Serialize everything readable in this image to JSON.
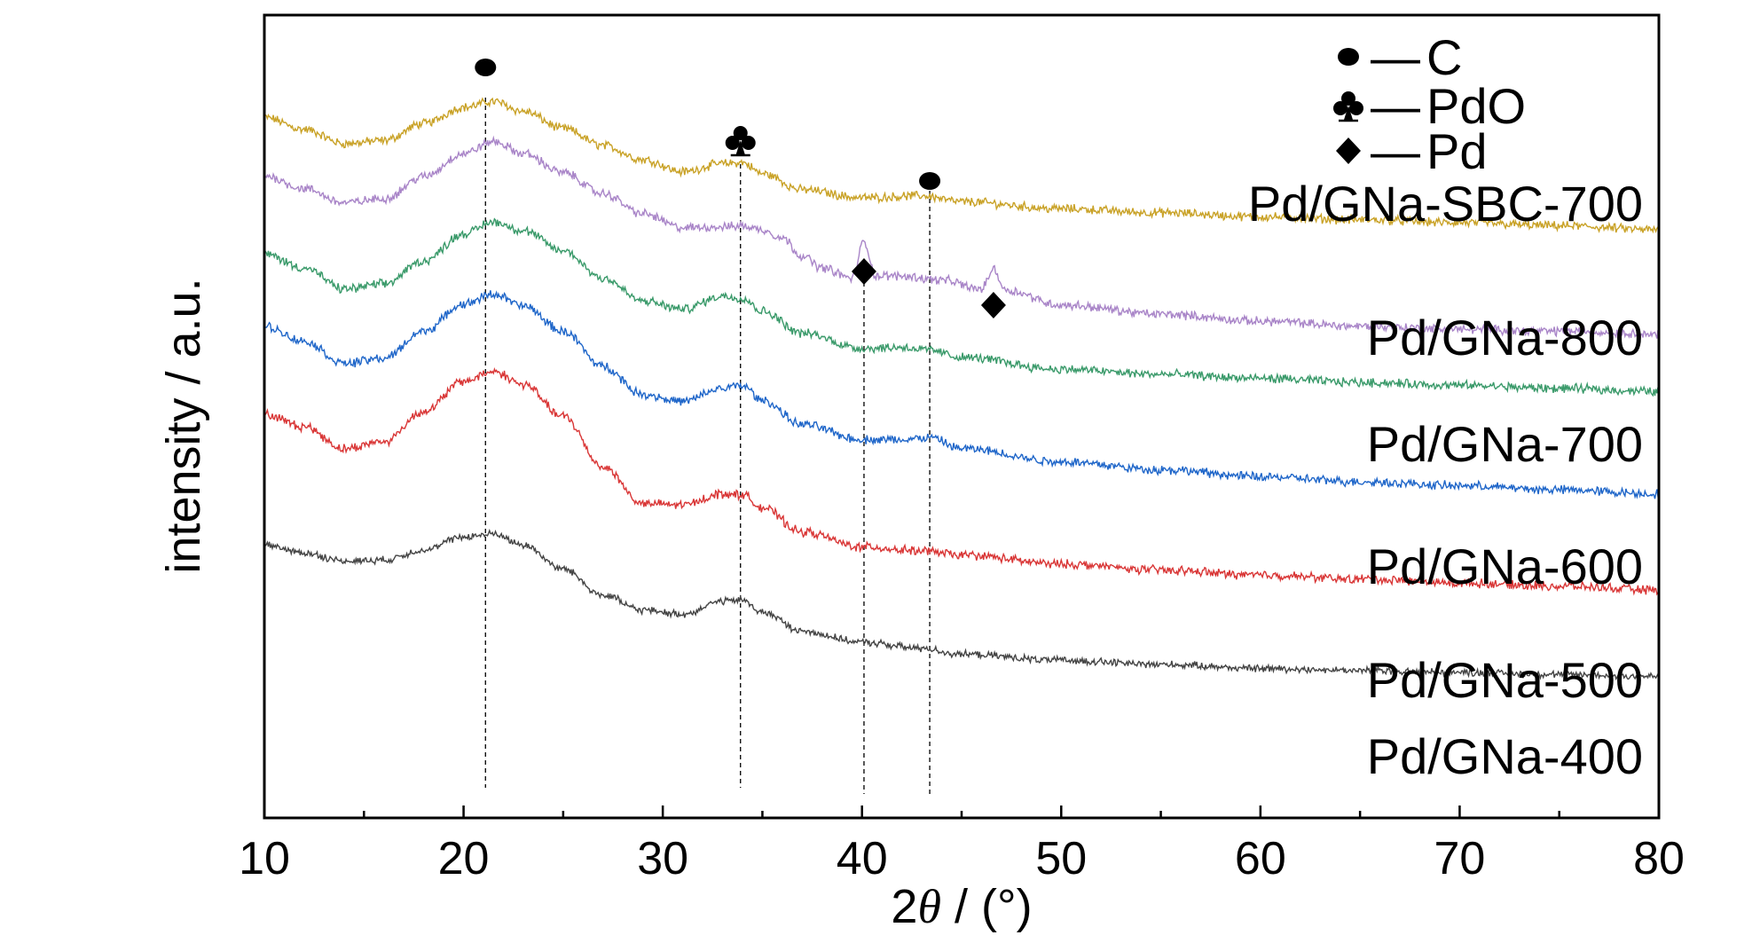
{
  "chart_data": {
    "type": "line",
    "xlabel_prefix": "2",
    "xlabel_symbol": "θ",
    "xlabel_suffix": " / (°)",
    "ylabel": "intensity / a.u.",
    "xlim": [
      10,
      80
    ],
    "x_ticks": [
      "10",
      "20",
      "30",
      "40",
      "50",
      "60",
      "70",
      "80"
    ],
    "grid": false,
    "y_ticks_shown": false,
    "legend": {
      "placement": "top-right",
      "entries": [
        {
          "marker": "circle",
          "separator": "—",
          "label": "C"
        },
        {
          "marker": "club",
          "separator": "—",
          "label": "PdO"
        },
        {
          "marker": "diamond",
          "separator": "—",
          "label": "Pd"
        }
      ]
    },
    "reference_lines": [
      {
        "x": 21.1,
        "phase": "C"
      },
      {
        "x": 33.9,
        "phase": "PdO"
      },
      {
        "x": 40.1,
        "phase": "Pd"
      },
      {
        "x": 43.4,
        "phase": "C"
      }
    ],
    "peak_markers": [
      {
        "x": 21.1,
        "marker": "circle",
        "series": "Pd/GNa-SBC-700"
      },
      {
        "x": 33.9,
        "marker": "club",
        "series": "Pd/GNa-SBC-700"
      },
      {
        "x": 43.4,
        "marker": "circle",
        "series": "Pd/GNa-SBC-700"
      },
      {
        "x": 40.1,
        "marker": "diamond",
        "series": "Pd/GNa-800"
      },
      {
        "x": 46.6,
        "marker": "diamond",
        "series": "Pd/GNa-800"
      }
    ],
    "series": [
      {
        "name": "Pd/GNa-SBC-700",
        "color": "#c9a227",
        "x": [
          10,
          12,
          14,
          16,
          18,
          20,
          21.5,
          23,
          25,
          27,
          29,
          31,
          33,
          34,
          35,
          37,
          40,
          43,
          45,
          50,
          55,
          60,
          65,
          70,
          75,
          80
        ],
        "y": [
          6.98,
          6.86,
          6.72,
          6.75,
          6.92,
          7.08,
          7.14,
          7.04,
          6.87,
          6.7,
          6.56,
          6.44,
          6.52,
          6.53,
          6.42,
          6.26,
          6.18,
          6.2,
          6.14,
          6.07,
          6.03,
          5.99,
          5.96,
          5.93,
          5.9,
          5.86
        ],
        "noise": 0.035
      },
      {
        "name": "Pd/GNa-800",
        "color": "#a985c8",
        "x": [
          10,
          12,
          14,
          16,
          18,
          20,
          21.5,
          23,
          25,
          27,
          29,
          31,
          33,
          34,
          35,
          36,
          37,
          38,
          39.5,
          40.1,
          40.7,
          42,
          44,
          46,
          46.6,
          47.2,
          50,
          55,
          60,
          65,
          70,
          75,
          80
        ],
        "y": [
          6.4,
          6.27,
          6.13,
          6.17,
          6.39,
          6.62,
          6.74,
          6.62,
          6.43,
          6.22,
          6.02,
          5.88,
          5.89,
          5.9,
          5.86,
          5.78,
          5.6,
          5.48,
          5.38,
          5.74,
          5.4,
          5.4,
          5.36,
          5.27,
          5.47,
          5.26,
          5.11,
          5.02,
          4.95,
          4.9,
          4.87,
          4.85,
          4.82
        ],
        "noise": 0.035
      },
      {
        "name": "Pd/GNa-700",
        "color": "#3a9a6a",
        "x": [
          10,
          12,
          14,
          16,
          18,
          20,
          21.5,
          23,
          25,
          27,
          29,
          31,
          33,
          34,
          35,
          37,
          40,
          42,
          43.4,
          45,
          50,
          55,
          60,
          65,
          70,
          75,
          80
        ],
        "y": [
          5.62,
          5.48,
          5.27,
          5.32,
          5.55,
          5.82,
          5.94,
          5.85,
          5.65,
          5.38,
          5.15,
          5.07,
          5.2,
          5.18,
          5.05,
          4.83,
          4.68,
          4.69,
          4.66,
          4.59,
          4.47,
          4.42,
          4.38,
          4.34,
          4.31,
          4.28,
          4.25
        ],
        "noise": 0.035
      },
      {
        "name": "Pd/GNa-600",
        "color": "#1f66c9",
        "x": [
          10,
          12,
          14,
          16,
          18,
          20,
          21.5,
          23,
          25,
          27,
          29,
          31,
          33,
          34,
          35,
          37,
          40,
          42,
          43.4,
          45,
          50,
          55,
          60,
          65,
          70,
          75,
          80
        ],
        "y": [
          4.9,
          4.75,
          4.53,
          4.58,
          4.85,
          5.12,
          5.22,
          5.1,
          4.85,
          4.5,
          4.22,
          4.15,
          4.28,
          4.31,
          4.16,
          3.92,
          3.77,
          3.77,
          3.79,
          3.68,
          3.55,
          3.47,
          3.4,
          3.35,
          3.31,
          3.27,
          3.23
        ],
        "noise": 0.035
      },
      {
        "name": "Pd/GNa-500",
        "color": "#d93636",
        "x": [
          10,
          12,
          14,
          16,
          18,
          20,
          21.5,
          23,
          25,
          27,
          29,
          31,
          33,
          34,
          35,
          37,
          40,
          43,
          45,
          50,
          55,
          60,
          65,
          70,
          75,
          80
        ],
        "y": [
          4.02,
          3.9,
          3.68,
          3.75,
          4.05,
          4.35,
          4.45,
          4.32,
          4.0,
          3.5,
          3.13,
          3.12,
          3.23,
          3.22,
          3.09,
          2.85,
          2.7,
          2.66,
          2.62,
          2.53,
          2.47,
          2.42,
          2.38,
          2.34,
          2.31,
          2.27
        ],
        "noise": 0.035
      },
      {
        "name": "Pd/GNa-400",
        "color": "#444444",
        "x": [
          10,
          12,
          14,
          16,
          18,
          20,
          21.5,
          23,
          25,
          27,
          29,
          31,
          33,
          34,
          35,
          37,
          40,
          43,
          45,
          50,
          55,
          60,
          65,
          70,
          75,
          80
        ],
        "y": [
          2.72,
          2.64,
          2.56,
          2.57,
          2.67,
          2.8,
          2.83,
          2.72,
          2.48,
          2.22,
          2.07,
          2.03,
          2.16,
          2.17,
          2.05,
          1.86,
          1.75,
          1.69,
          1.63,
          1.57,
          1.53,
          1.49,
          1.47,
          1.45,
          1.43,
          1.41
        ],
        "noise": 0.028
      }
    ]
  }
}
